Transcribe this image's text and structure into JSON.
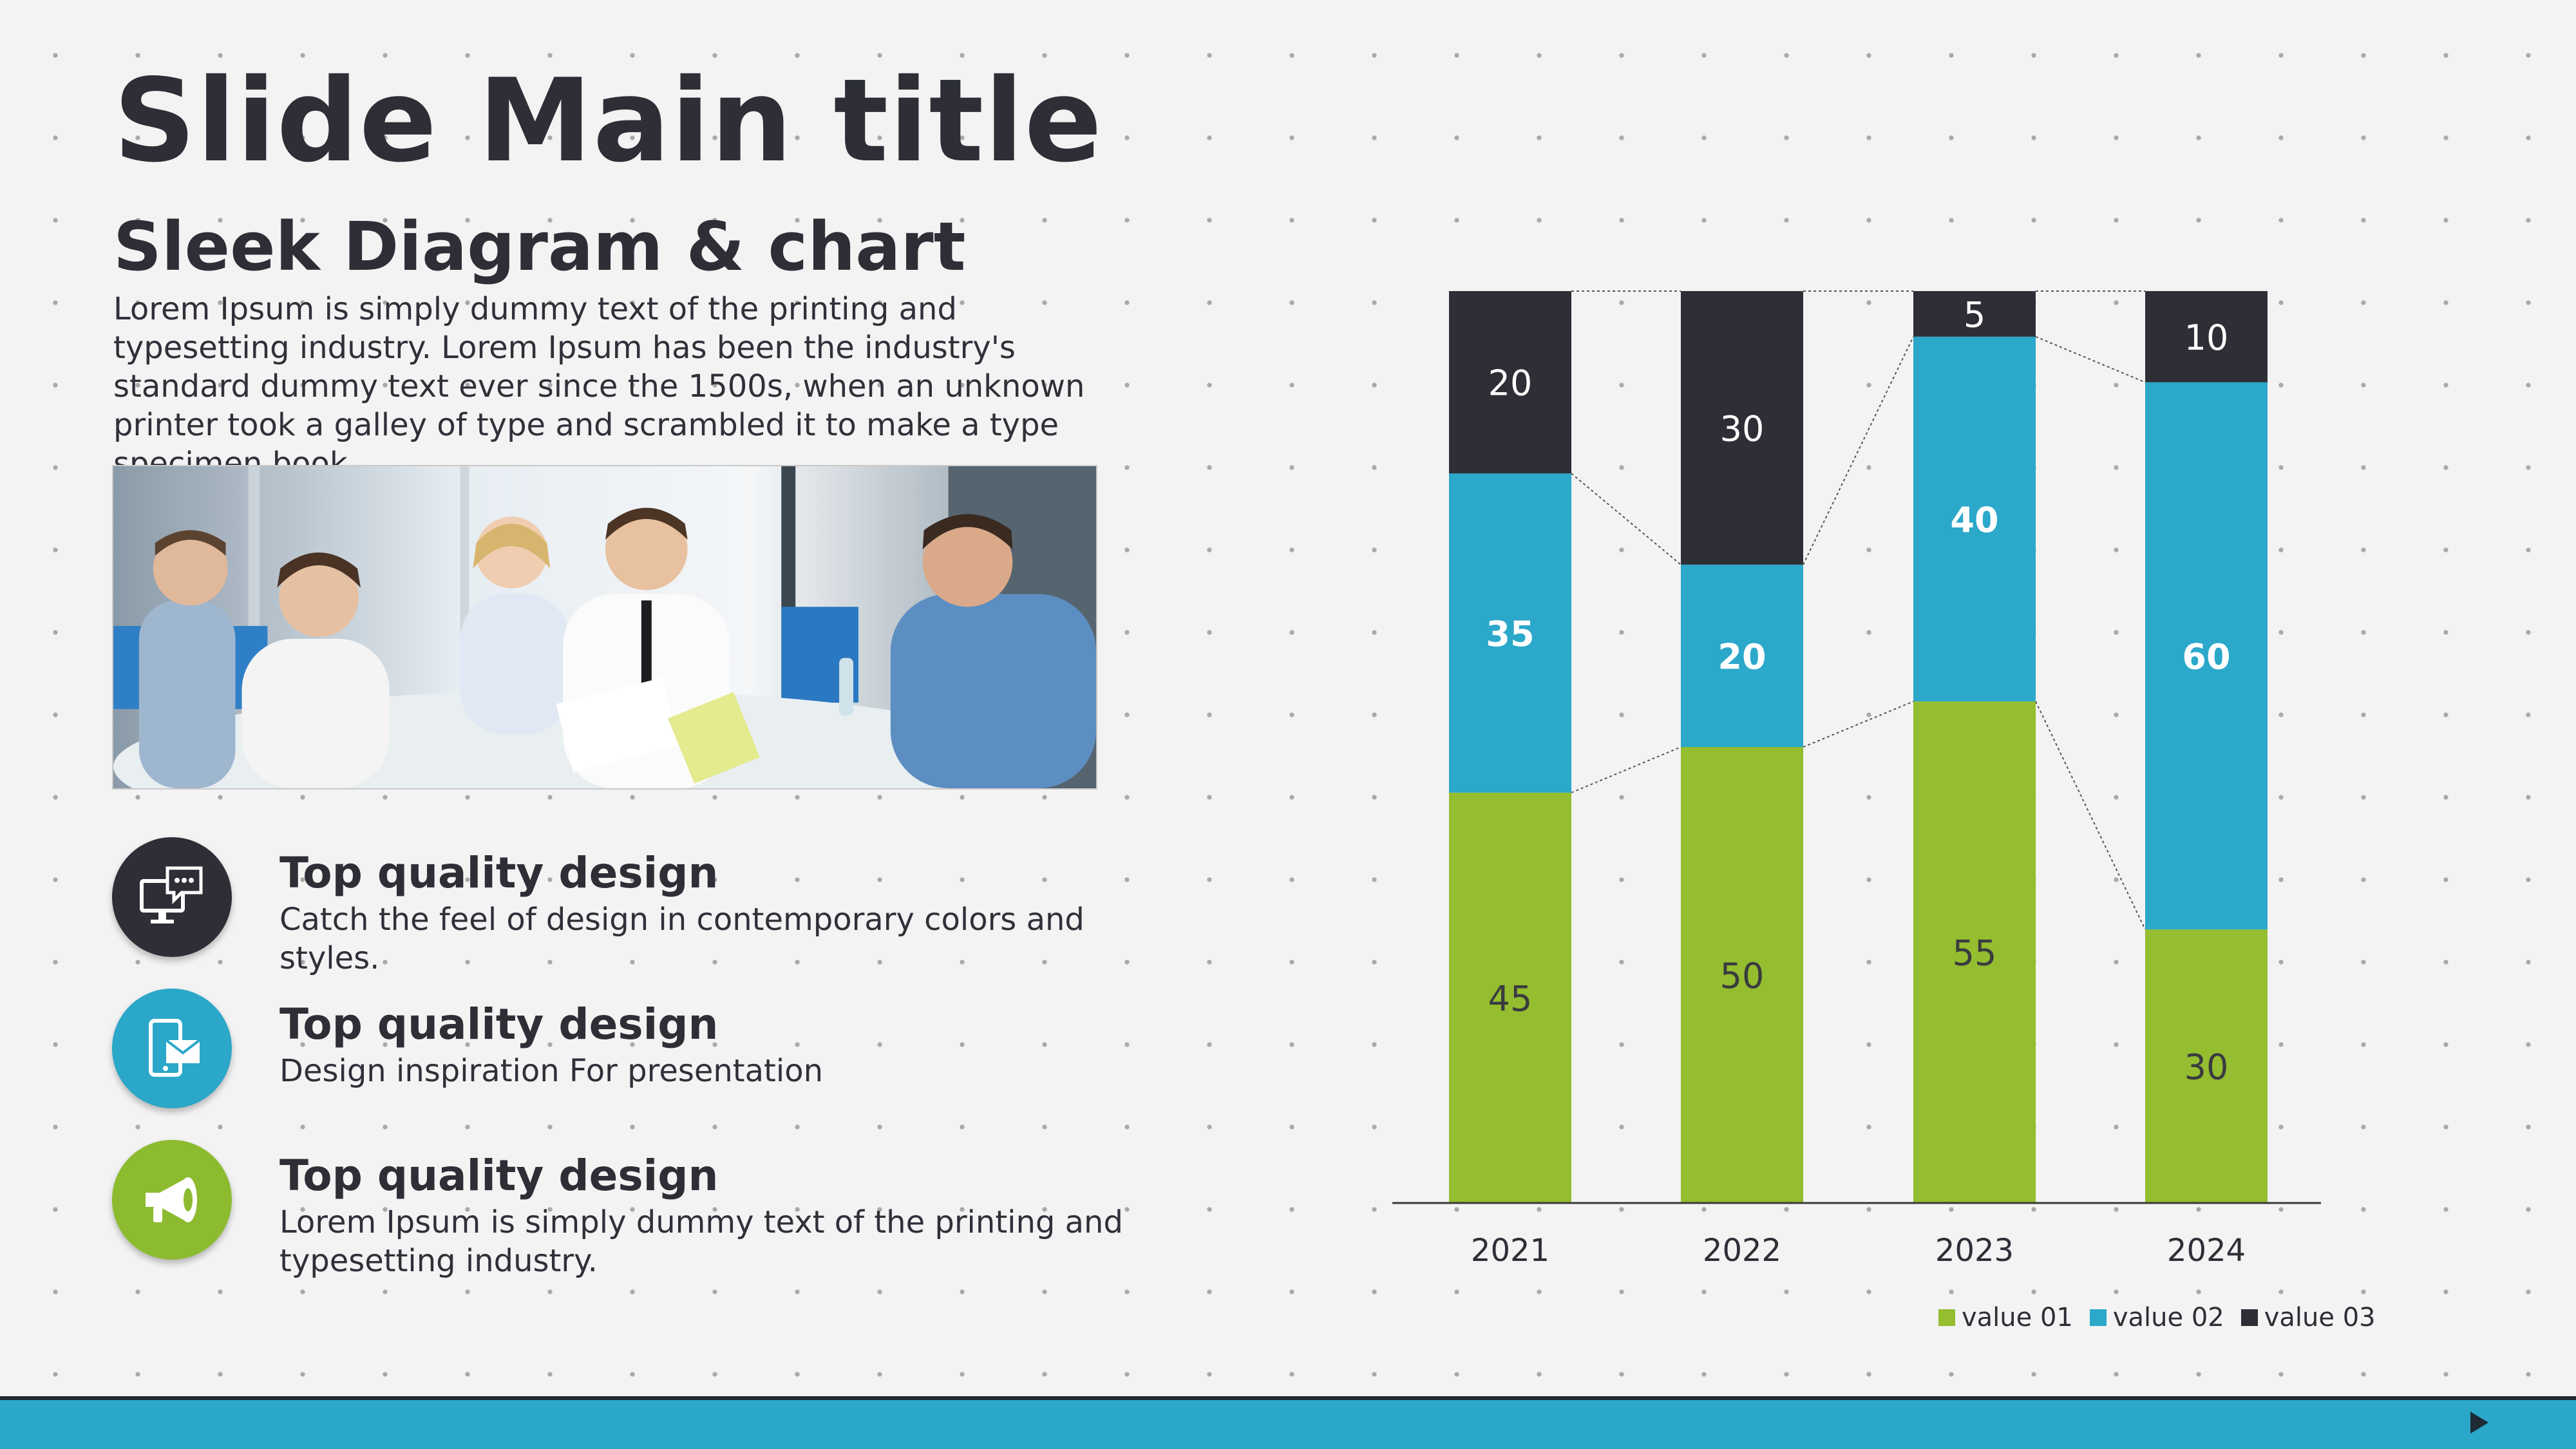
{
  "slide": {
    "title": "Slide Main title",
    "subtitle": "Sleek Diagram & chart",
    "intro": "Lorem Ipsum is simply dummy text of the printing and typesetting industry. Lorem Ipsum has been the industry's standard dummy text ever since the 1500s, when an unknown printer took a galley of type and scrambled it to make a type specimen book."
  },
  "features": [
    {
      "icon": "monitor-chat-icon",
      "color": "#2d2e36",
      "title": "Top quality design",
      "text": "Catch the feel of design in contemporary colors and styles."
    },
    {
      "icon": "mobile-mail-icon",
      "color": "#2aa7c9",
      "title": "Top quality design",
      "text": "Design inspiration For presentation"
    },
    {
      "icon": "megaphone-icon",
      "color": "#8dbb30",
      "title": "Top quality design",
      "text": "Lorem Ipsum is simply dummy text of the printing and typesetting industry."
    }
  ],
  "chart_data": {
    "type": "bar",
    "stacked": true,
    "categories": [
      "2021",
      "2022",
      "2023",
      "2024"
    ],
    "series": [
      {
        "name": "value 01",
        "color": "#94bd2f",
        "values": [
          45,
          50,
          55,
          30
        ]
      },
      {
        "name": "value 02",
        "color": "#2ba8ca",
        "values": [
          35,
          20,
          40,
          60
        ]
      },
      {
        "name": "value 03",
        "color": "#2d2e36",
        "values": [
          20,
          30,
          5,
          10
        ]
      }
    ],
    "ylim": [
      0,
      100
    ],
    "legend_position": "bottom-right",
    "grid": false
  },
  "colors": {
    "accent_blue": "#2aa7c9",
    "accent_green": "#8dbb30",
    "dark": "#2d2e36"
  }
}
